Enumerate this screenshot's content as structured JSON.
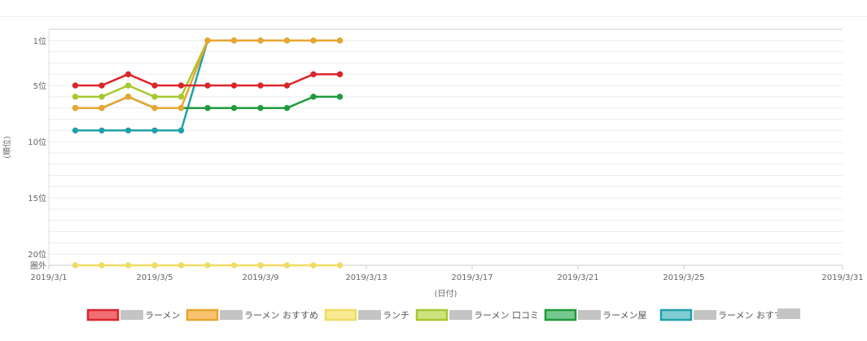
{
  "chart_data": {
    "type": "line",
    "xlabel": "(日付)",
    "ylabel": "(順位)",
    "x": [
      "2019/3/2",
      "2019/3/3",
      "2019/3/4",
      "2019/3/5",
      "2019/3/6",
      "2019/3/7",
      "2019/3/8",
      "2019/3/9",
      "2019/3/10",
      "2019/3/11",
      "2019/3/12"
    ],
    "x_ticks": [
      "2019/3/1",
      "2019/3/5",
      "2019/3/9",
      "2019/3/13",
      "2019/3/17",
      "2019/3/21",
      "2019/3/25",
      "2019/3/31"
    ],
    "xlim": [
      "2019/3/1",
      "2019/3/31"
    ],
    "y_ticks": [
      {
        "value": 1,
        "label": "1位"
      },
      {
        "value": 5,
        "label": "5位"
      },
      {
        "value": 10,
        "label": "10位"
      },
      {
        "value": 15,
        "label": "15位"
      },
      {
        "value": 20,
        "label": "20位"
      },
      {
        "value": 21,
        "label": "圏外"
      }
    ],
    "ylim": [
      0,
      21
    ],
    "y_inverted": true,
    "grid": true,
    "legend_position": "bottom",
    "series": [
      {
        "name": "ラーメン",
        "color": "#d9262a",
        "fill": "#f06e74",
        "values": [
          5,
          5,
          4,
          5,
          5,
          5,
          5,
          5,
          5,
          4,
          4
        ]
      },
      {
        "name": "ラーメン おすすめ",
        "color": "#e8a530",
        "fill": "#f7c36e",
        "values": [
          7,
          7,
          6,
          7,
          7,
          1,
          1,
          1,
          1,
          1,
          1
        ]
      },
      {
        "name": "ランチ",
        "color": "#f0dc64",
        "fill": "#f7ea90",
        "values": [
          21,
          21,
          21,
          21,
          21,
          21,
          21,
          21,
          21,
          21,
          21
        ]
      },
      {
        "name": "ラーメン 口コミ",
        "color": "#a6c830",
        "fill": "#cde380",
        "values": [
          6,
          6,
          5,
          6,
          6,
          1,
          1,
          1,
          1,
          1,
          1
        ]
      },
      {
        "name": "ラーメン屋",
        "color": "#1f9a3d",
        "fill": "#77c88e",
        "values": [
          7,
          7,
          6,
          7,
          7,
          7,
          7,
          7,
          7,
          6,
          6
        ]
      },
      {
        "name": "ラーメン おすすめ",
        "color": "#1ea1a8",
        "fill": "#7fcdd1",
        "values": [
          9,
          9,
          9,
          9,
          9,
          1,
          1,
          1,
          1,
          1,
          1
        ]
      }
    ]
  }
}
